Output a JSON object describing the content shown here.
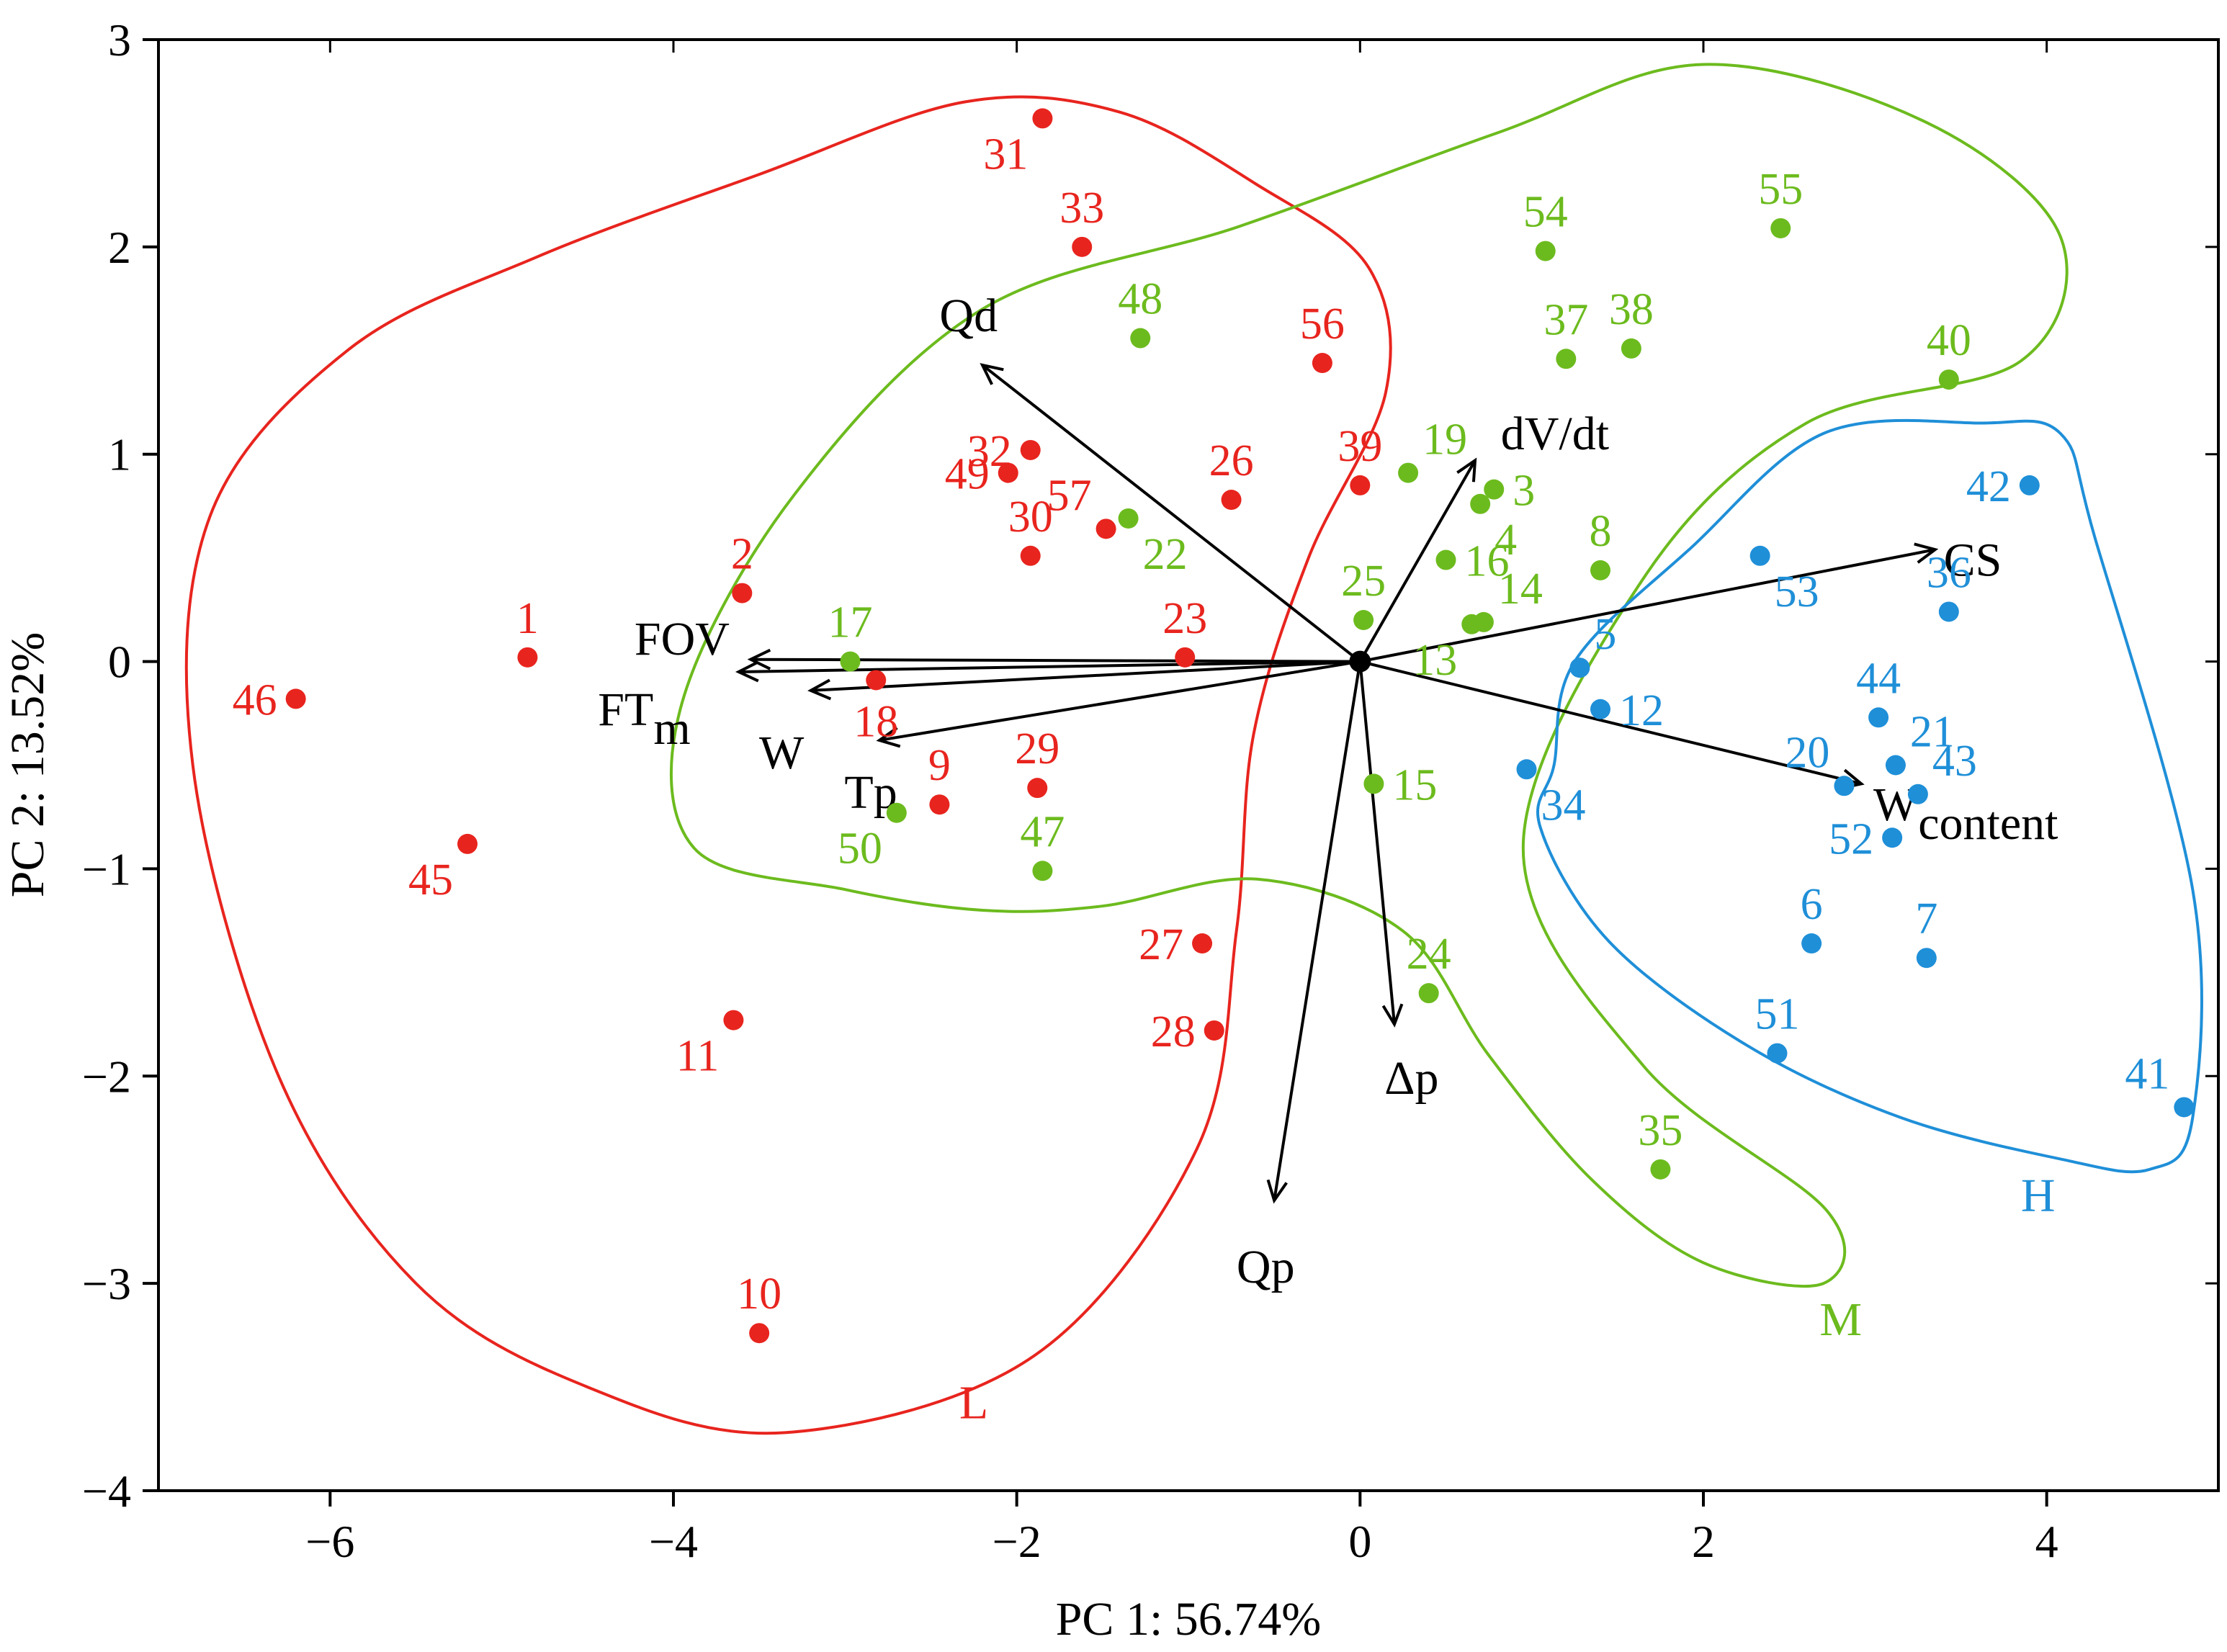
{
  "chart_data": {
    "type": "scatter",
    "xlabel": "PC 1: 56.74%",
    "ylabel": "PC 2: 13.52%",
    "xlim": [
      -7,
      5
    ],
    "ylim": [
      -4,
      3
    ],
    "xticks": [
      -6,
      -4,
      -2,
      0,
      2,
      4
    ],
    "yticks": [
      -4,
      -3,
      -2,
      -1,
      0,
      1,
      2,
      3
    ],
    "xtick_labels": [
      "−6",
      "−4",
      "−2",
      "0",
      "2",
      "4"
    ],
    "ytick_labels": [
      "−4",
      "−3",
      "−2",
      "−1",
      "0",
      "1",
      "2",
      "3"
    ],
    "colors": {
      "L": "#e8241e",
      "M": "#6cbb1e",
      "H": "#1f8fd8",
      "axis": "#000000"
    },
    "groups": [
      {
        "key": "L",
        "name": "L",
        "label_at": [
          -2.25,
          -3.65
        ]
      },
      {
        "key": "M",
        "name": "M",
        "label_at": [
          2.8,
          -3.25
        ]
      },
      {
        "key": "H",
        "name": "H",
        "label_at": [
          3.95,
          -2.65
        ]
      }
    ],
    "points": [
      {
        "label": "1",
        "group": "L",
        "x": -4.85,
        "y": 0.02,
        "lp": "n"
      },
      {
        "label": "2",
        "group": "L",
        "x": -3.6,
        "y": 0.33,
        "lp": "n"
      },
      {
        "label": "9",
        "group": "L",
        "x": -2.45,
        "y": -0.69,
        "lp": "n"
      },
      {
        "label": "10",
        "group": "L",
        "x": -3.5,
        "y": -3.24,
        "lp": "n"
      },
      {
        "label": "11",
        "group": "L",
        "x": -3.65,
        "y": -1.73,
        "lp": "sw"
      },
      {
        "label": "18",
        "group": "L",
        "x": -2.82,
        "y": -0.09,
        "lp": "s"
      },
      {
        "label": "23",
        "group": "L",
        "x": -1.02,
        "y": 0.02,
        "lp": "n"
      },
      {
        "label": "26",
        "group": "L",
        "x": -0.75,
        "y": 0.78,
        "lp": "n"
      },
      {
        "label": "27",
        "group": "L",
        "x": -0.92,
        "y": -1.36,
        "lp": "w"
      },
      {
        "label": "28",
        "group": "L",
        "x": -0.85,
        "y": -1.78,
        "lp": "w"
      },
      {
        "label": "29",
        "group": "L",
        "x": -1.88,
        "y": -0.61,
        "lp": "n"
      },
      {
        "label": "30",
        "group": "L",
        "x": -1.92,
        "y": 0.51,
        "lp": "n"
      },
      {
        "label": "31",
        "group": "L",
        "x": -1.85,
        "y": 2.62,
        "lp": "sw"
      },
      {
        "label": "32",
        "group": "L",
        "x": -1.92,
        "y": 1.02,
        "lp": "w"
      },
      {
        "label": "33",
        "group": "L",
        "x": -1.62,
        "y": 2.0,
        "lp": "n"
      },
      {
        "label": "39",
        "group": "L",
        "x": 0.0,
        "y": 0.85,
        "lp": "n"
      },
      {
        "label": "45",
        "group": "L",
        "x": -5.2,
        "y": -0.88,
        "lp": "sw"
      },
      {
        "label": "46",
        "group": "L",
        "x": -6.2,
        "y": -0.18,
        "lp": "w"
      },
      {
        "label": "49",
        "group": "L",
        "x": -2.05,
        "y": 0.91,
        "lp": "w"
      },
      {
        "label": "56",
        "group": "L",
        "x": -0.22,
        "y": 1.44,
        "lp": "n"
      },
      {
        "label": "57",
        "group": "L",
        "x": -1.48,
        "y": 0.64,
        "lp": "nw"
      },
      {
        "label": "3",
        "group": "M",
        "x": 0.78,
        "y": 0.83,
        "lp": "e"
      },
      {
        "label": "4",
        "group": "M",
        "x": 0.7,
        "y": 0.76,
        "lp": "se"
      },
      {
        "label": "8",
        "group": "M",
        "x": 1.4,
        "y": 0.44,
        "lp": "n"
      },
      {
        "label": "13",
        "group": "M",
        "x": 0.65,
        "y": 0.18,
        "lp": "sw"
      },
      {
        "label": "14",
        "group": "M",
        "x": 0.72,
        "y": 0.19,
        "lp": "ne"
      },
      {
        "label": "15",
        "group": "M",
        "x": 0.08,
        "y": -0.59,
        "lp": "e"
      },
      {
        "label": "16",
        "group": "M",
        "x": 0.5,
        "y": 0.49,
        "lp": "e"
      },
      {
        "label": "17",
        "group": "M",
        "x": -2.97,
        "y": 0.0,
        "lp": "n"
      },
      {
        "label": "19",
        "group": "M",
        "x": 0.28,
        "y": 0.91,
        "lp": "ne"
      },
      {
        "label": "22",
        "group": "M",
        "x": -1.35,
        "y": 0.69,
        "lp": "se"
      },
      {
        "label": "24",
        "group": "M",
        "x": 0.4,
        "y": -1.6,
        "lp": "n"
      },
      {
        "label": "25",
        "group": "M",
        "x": 0.02,
        "y": 0.2,
        "lp": "n"
      },
      {
        "label": "35",
        "group": "M",
        "x": 1.75,
        "y": -2.45,
        "lp": "n"
      },
      {
        "label": "37",
        "group": "M",
        "x": 1.2,
        "y": 1.46,
        "lp": "n"
      },
      {
        "label": "38",
        "group": "M",
        "x": 1.58,
        "y": 1.51,
        "lp": "n"
      },
      {
        "label": "40",
        "group": "M",
        "x": 3.43,
        "y": 1.36,
        "lp": "n"
      },
      {
        "label": "47",
        "group": "M",
        "x": -1.85,
        "y": -1.01,
        "lp": "n"
      },
      {
        "label": "48",
        "group": "M",
        "x": -1.28,
        "y": 1.56,
        "lp": "n"
      },
      {
        "label": "50",
        "group": "M",
        "x": -2.7,
        "y": -0.73,
        "lp": "sw"
      },
      {
        "label": "54",
        "group": "M",
        "x": 1.08,
        "y": 1.98,
        "lp": "n"
      },
      {
        "label": "55",
        "group": "M",
        "x": 2.45,
        "y": 2.09,
        "lp": "n"
      },
      {
        "label": "5",
        "group": "H",
        "x": 1.28,
        "y": -0.03,
        "lp": "ne"
      },
      {
        "label": "6",
        "group": "H",
        "x": 2.63,
        "y": -1.36,
        "lp": "n"
      },
      {
        "label": "7",
        "group": "H",
        "x": 3.3,
        "y": -1.43,
        "lp": "n"
      },
      {
        "label": "12",
        "group": "H",
        "x": 1.4,
        "y": -0.23,
        "lp": "e"
      },
      {
        "label": "20",
        "group": "H",
        "x": 2.82,
        "y": -0.6,
        "lp": "nw"
      },
      {
        "label": "21",
        "group": "H",
        "x": 3.12,
        "y": -0.5,
        "lp": "ne"
      },
      {
        "label": "34",
        "group": "H",
        "x": 0.97,
        "y": -0.52,
        "lp": "se"
      },
      {
        "label": "36",
        "group": "H",
        "x": 3.43,
        "y": 0.24,
        "lp": "n"
      },
      {
        "label": "41",
        "group": "H",
        "x": 4.8,
        "y": -2.15,
        "lp": "nw"
      },
      {
        "label": "42",
        "group": "H",
        "x": 3.9,
        "y": 0.85,
        "lp": "w"
      },
      {
        "label": "43",
        "group": "H",
        "x": 3.25,
        "y": -0.64,
        "lp": "ne"
      },
      {
        "label": "44",
        "group": "H",
        "x": 3.02,
        "y": -0.27,
        "lp": "n"
      },
      {
        "label": "51",
        "group": "H",
        "x": 2.43,
        "y": -1.89,
        "lp": "n"
      },
      {
        "label": "52",
        "group": "H",
        "x": 3.1,
        "y": -0.85,
        "lp": "w"
      },
      {
        "label": "53",
        "group": "H",
        "x": 2.33,
        "y": 0.51,
        "lp": "se"
      }
    ],
    "vectors": [
      {
        "name": "Qd",
        "x": -2.2,
        "y": 1.43,
        "label": "Qd",
        "sub": ""
      },
      {
        "name": "dV/dt",
        "x": 0.67,
        "y": 0.97,
        "label": "dV/dt",
        "sub": ""
      },
      {
        "name": "CS",
        "x": 3.35,
        "y": 0.54,
        "label": "CS",
        "sub": ""
      },
      {
        "name": "FOV",
        "x": -3.55,
        "y": 0.01,
        "label": "FOV",
        "sub": ""
      },
      {
        "name": "FTm",
        "x": -3.62,
        "y": -0.05,
        "label": "FT",
        "sub": "m"
      },
      {
        "name": "W",
        "x": -3.2,
        "y": -0.14,
        "label": "W",
        "sub": ""
      },
      {
        "name": "Tp",
        "x": -2.8,
        "y": -0.38,
        "label": "Tp",
        "sub": ""
      },
      {
        "name": "Wcontent",
        "x": 2.92,
        "y": -0.59,
        "label": "W",
        "sub": "content"
      },
      {
        "name": "Δp",
        "x": 0.2,
        "y": -1.75,
        "label": "Δp",
        "sub": ""
      },
      {
        "name": "Qp",
        "x": -0.5,
        "y": -2.6,
        "label": "Qp",
        "sub": ""
      }
    ],
    "hulls": {
      "L": [
        [
          -3.35,
          -3.72
        ],
        [
          -4.5,
          -3.5
        ],
        [
          -5.5,
          -3.0
        ],
        [
          -6.3,
          -2.0
        ],
        [
          -6.8,
          -0.5
        ],
        [
          -6.7,
          0.7
        ],
        [
          -5.9,
          1.5
        ],
        [
          -4.8,
          1.95
        ],
        [
          -3.5,
          2.35
        ],
        [
          -2.3,
          2.7
        ],
        [
          -1.4,
          2.65
        ],
        [
          -0.6,
          2.3
        ],
        [
          0.05,
          1.9
        ],
        [
          0.15,
          1.3
        ],
        [
          -0.3,
          0.5
        ],
        [
          -0.62,
          -0.35
        ],
        [
          -0.72,
          -1.3
        ],
        [
          -0.95,
          -2.35
        ],
        [
          -1.9,
          -3.35
        ]
      ],
      "M": [
        [
          -3.0,
          -1.1
        ],
        [
          -3.88,
          -0.9
        ],
        [
          -3.95,
          -0.2
        ],
        [
          -3.3,
          0.8
        ],
        [
          -2.2,
          1.7
        ],
        [
          -0.7,
          2.1
        ],
        [
          0.8,
          2.55
        ],
        [
          2.0,
          2.88
        ],
        [
          3.3,
          2.6
        ],
        [
          4.08,
          2.05
        ],
        [
          3.85,
          1.45
        ],
        [
          2.6,
          1.15
        ],
        [
          1.65,
          0.4
        ],
        [
          0.95,
          -0.9
        ],
        [
          1.65,
          -1.95
        ],
        [
          2.72,
          -2.65
        ],
        [
          2.7,
          -3.0
        ],
        [
          2.0,
          -2.9
        ],
        [
          1.35,
          -2.5
        ],
        [
          0.75,
          -1.9
        ],
        [
          0.25,
          -1.3
        ],
        [
          -0.6,
          -1.05
        ],
        [
          -1.5,
          -1.18
        ],
        [
          -2.2,
          -1.2
        ]
      ],
      "H": [
        [
          1.13,
          -0.5
        ],
        [
          1.25,
          0.0
        ],
        [
          1.93,
          0.55
        ],
        [
          2.7,
          1.1
        ],
        [
          3.62,
          1.15
        ],
        [
          4.08,
          1.1
        ],
        [
          4.28,
          0.6
        ],
        [
          4.85,
          -1.1
        ],
        [
          4.85,
          -2.2
        ],
        [
          4.6,
          -2.45
        ],
        [
          4.08,
          -2.4
        ],
        [
          3.15,
          -2.2
        ],
        [
          2.25,
          -1.85
        ],
        [
          1.45,
          -1.35
        ],
        [
          1.05,
          -0.8
        ]
      ]
    }
  }
}
